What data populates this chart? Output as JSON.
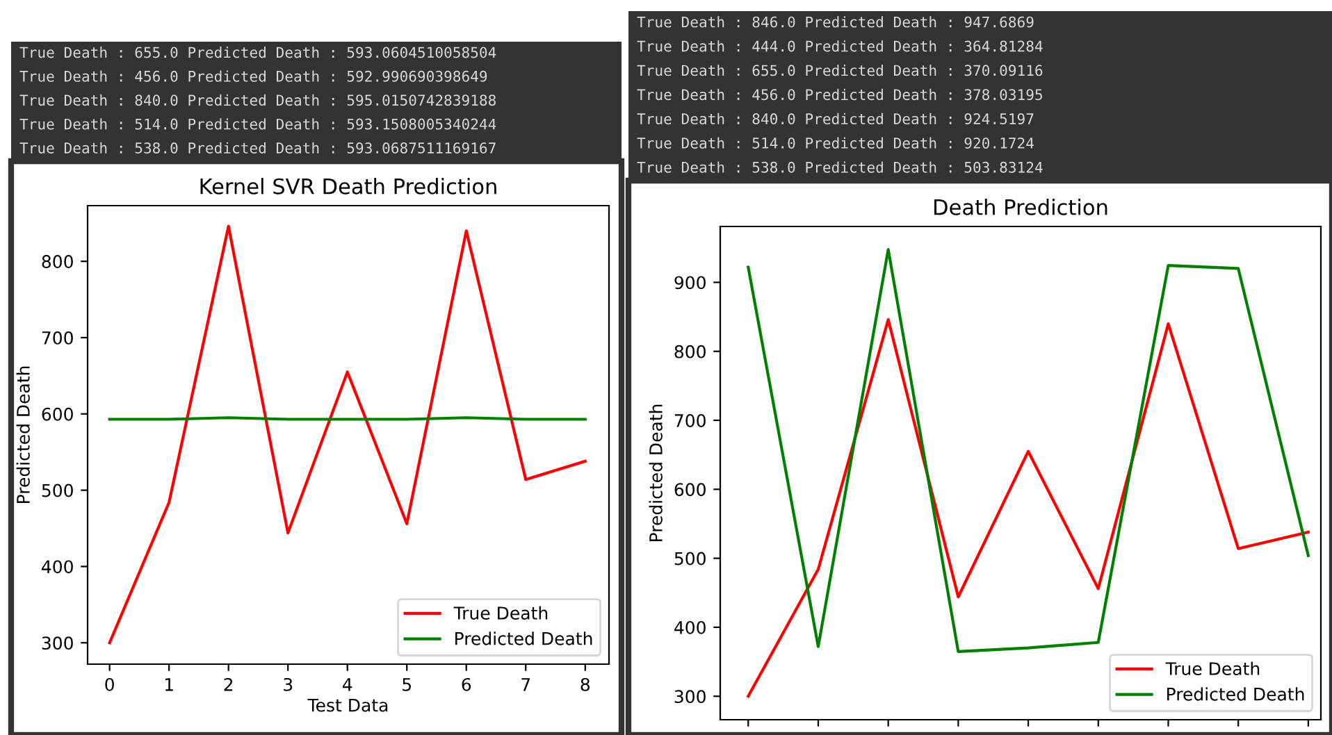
{
  "chart_data": [
    {
      "type": "line",
      "title": "Kernel SVR Death Prediction",
      "xlabel": "Test Data",
      "ylabel": "Predicted Death",
      "x": [
        0,
        1,
        2,
        3,
        4,
        5,
        6,
        7,
        8
      ],
      "series": [
        {
          "name": "True Death",
          "color": "#ff0000",
          "values": [
            300,
            484,
            846,
            444,
            655,
            456,
            840,
            514,
            538
          ]
        },
        {
          "name": "Predicted Death",
          "color": "#008000",
          "values": [
            593,
            593,
            595,
            593,
            593,
            593,
            595,
            593,
            593
          ]
        }
      ],
      "xlim": [
        -0.37,
        8.4
      ],
      "xticks": [
        0,
        1,
        2,
        3,
        4,
        5,
        6,
        7,
        8
      ],
      "ylim": [
        272,
        873
      ],
      "yticks": [
        300,
        400,
        500,
        600,
        700,
        800
      ],
      "legend": "bottom right",
      "grid": false,
      "annotations": [
        "True Death : 655.0 Predicted Death : 593.0604510058504",
        "True Death : 456.0 Predicted Death : 592.990690398649",
        "True Death : 840.0 Predicted Death : 595.0150742839188",
        "True Death : 514.0 Predicted Death : 593.1508005340244",
        "True Death : 538.0 Predicted Death : 593.0687511169167"
      ]
    },
    {
      "type": "line",
      "title": "Death Prediction",
      "ylabel": "Predicted Death",
      "categories": [
        null,
        null,
        null,
        null,
        null,
        null,
        null,
        null,
        null
      ],
      "series": [
        {
          "name": "True Death",
          "color": "#ff0000",
          "values": [
            300,
            484,
            846,
            444,
            655,
            456,
            840,
            514,
            538
          ]
        },
        {
          "name": "Predicted Death",
          "color": "#008000",
          "values": [
            922,
            372,
            947.6869,
            364.81284,
            370.09116,
            378.03195,
            924.5197,
            920.1724,
            503.83124
          ]
        }
      ],
      "ylim": [
        266,
        981
      ],
      "yticks": [
        300,
        400,
        500,
        600,
        700,
        800,
        900
      ],
      "legend": "bottom right",
      "grid": false,
      "annotations": [
        "True Death : 846.0 Predicted Death : 947.6869",
        "True Death : 444.0 Predicted Death : 364.81284",
        "True Death : 655.0 Predicted Death : 370.09116",
        "True Death : 456.0 Predicted Death : 378.03195",
        "True Death : 840.0 Predicted Death : 924.5197",
        "True Death : 514.0 Predicted Death : 920.1724",
        "True Death : 538.0 Predicted Death : 503.83124"
      ]
    }
  ]
}
